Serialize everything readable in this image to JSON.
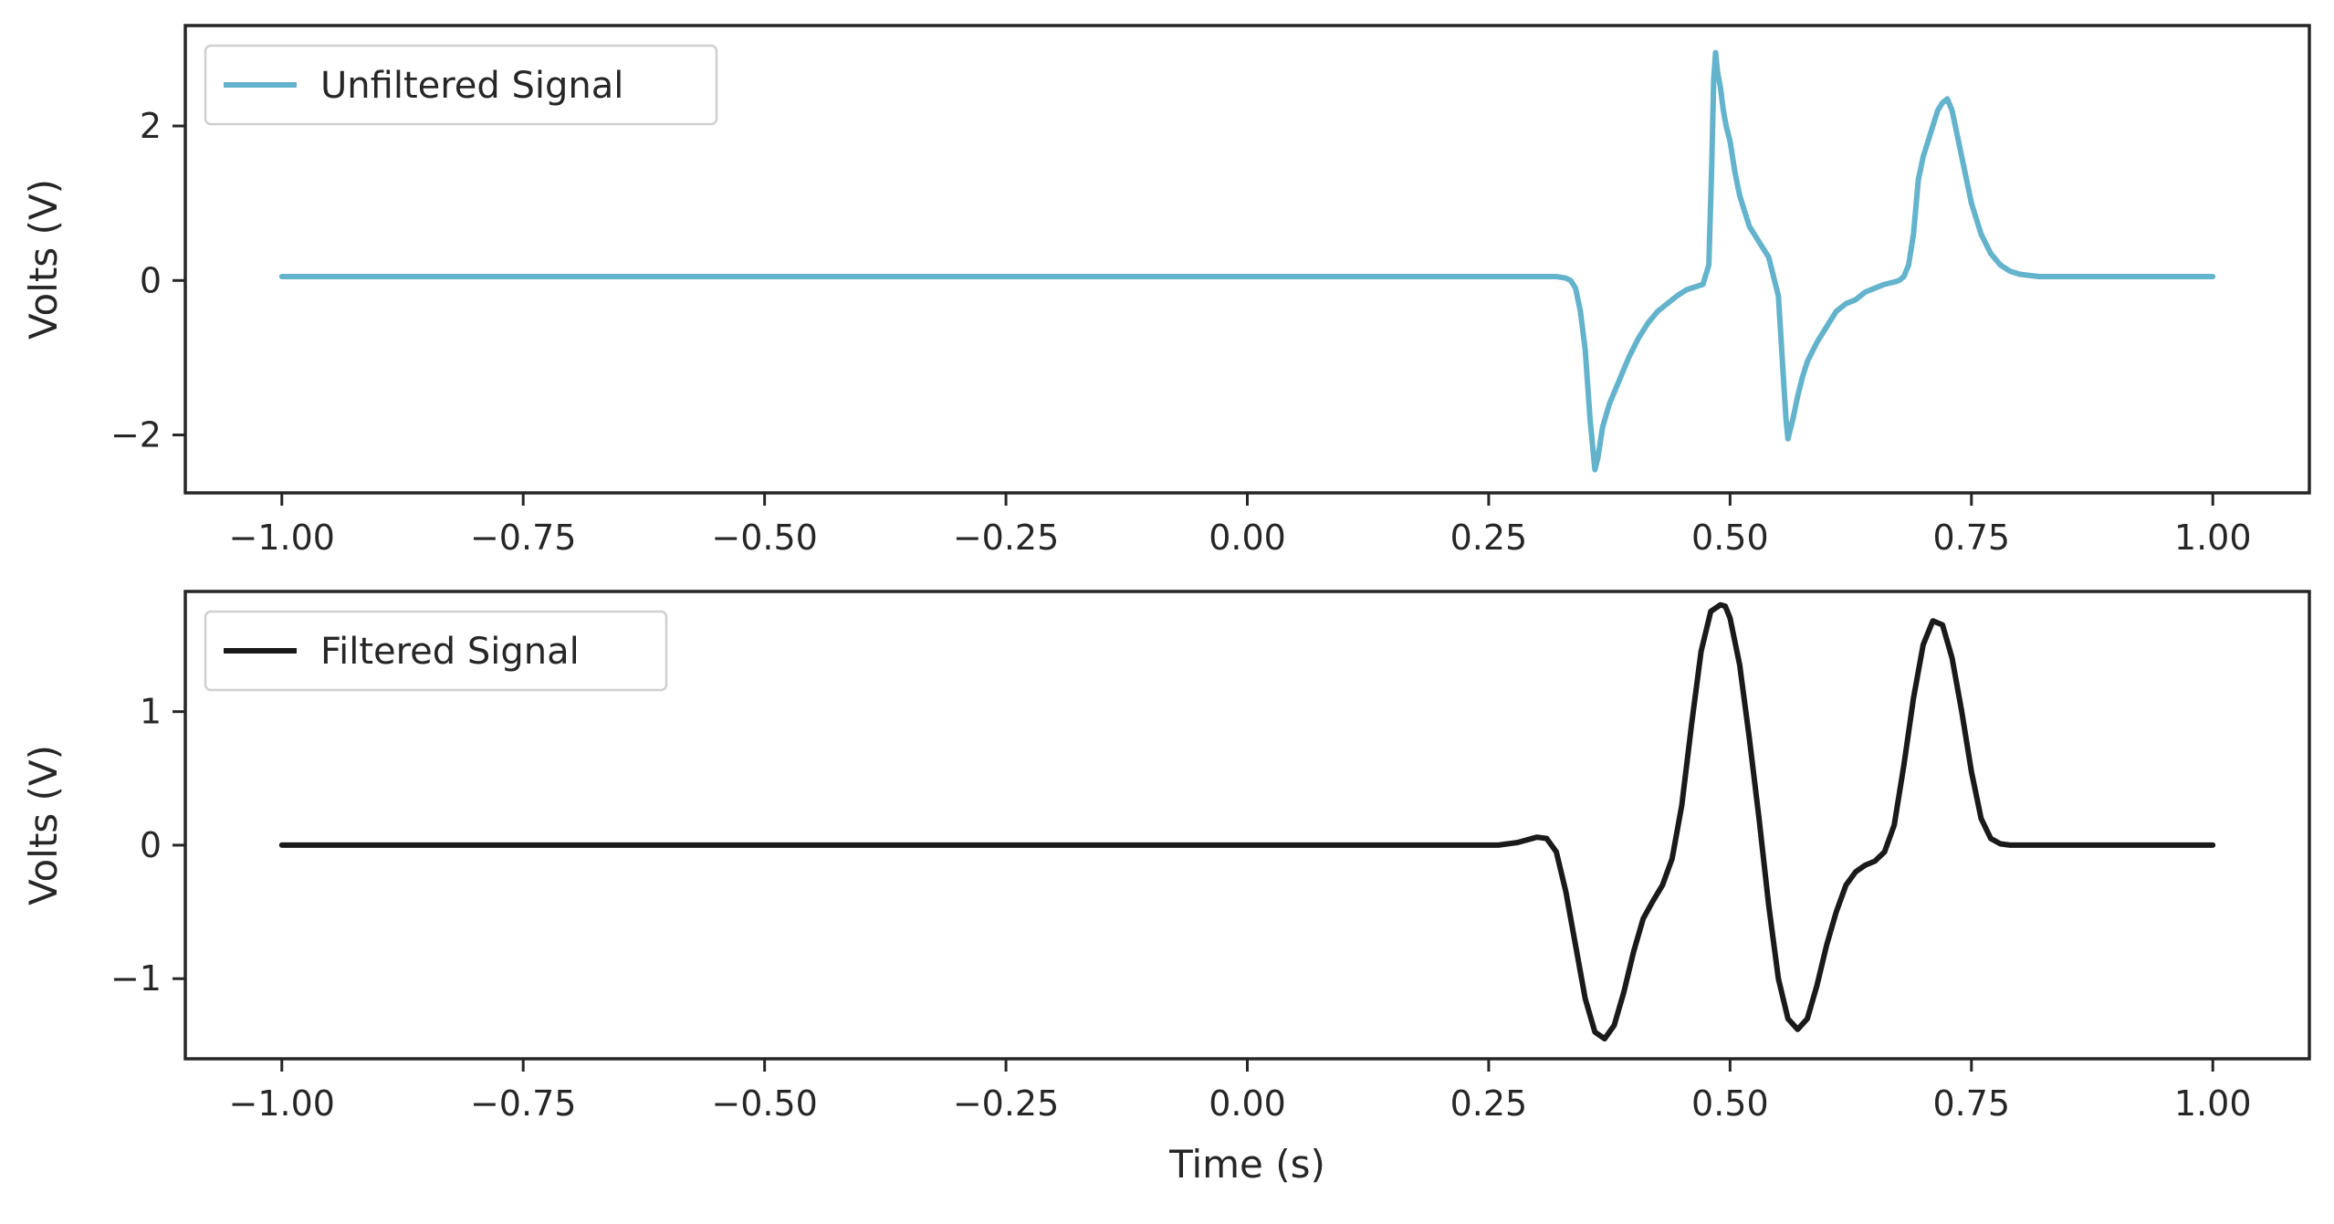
{
  "chart_data": [
    {
      "type": "line",
      "xlabel": "",
      "ylabel": "Volts (V)",
      "xlim": [
        -1.1,
        1.1
      ],
      "ylim": [
        -2.75,
        3.3
      ],
      "xticks": [
        -1.0,
        -0.75,
        -0.5,
        -0.25,
        0.0,
        0.25,
        0.5,
        0.75,
        1.0
      ],
      "xtick_labels": [
        "−1.00",
        "−0.75",
        "−0.50",
        "−0.25",
        "0.00",
        "0.25",
        "0.50",
        "0.75",
        "1.00"
      ],
      "yticks": [
        -2,
        0,
        2
      ],
      "ytick_labels": [
        "−2",
        "0",
        "2"
      ],
      "legend_position": "upper-left",
      "grid": false,
      "series": [
        {
          "name": "Unfiltered Signal",
          "color": "#63b3cc",
          "x": [
            -1.0,
            -0.9,
            -0.8,
            -0.7,
            -0.6,
            -0.5,
            -0.4,
            -0.3,
            -0.2,
            -0.1,
            0.0,
            0.1,
            0.2,
            0.3,
            0.31,
            0.32,
            0.33,
            0.335,
            0.34,
            0.345,
            0.35,
            0.355,
            0.36,
            0.363,
            0.368,
            0.375,
            0.385,
            0.395,
            0.405,
            0.415,
            0.425,
            0.435,
            0.445,
            0.455,
            0.465,
            0.472,
            0.478,
            0.481,
            0.483,
            0.485,
            0.487,
            0.49,
            0.493,
            0.496,
            0.5,
            0.505,
            0.51,
            0.515,
            0.52,
            0.53,
            0.54,
            0.55,
            0.555,
            0.558,
            0.56,
            0.562,
            0.565,
            0.57,
            0.575,
            0.58,
            0.59,
            0.6,
            0.61,
            0.62,
            0.63,
            0.64,
            0.65,
            0.66,
            0.67,
            0.675,
            0.68,
            0.685,
            0.69,
            0.695,
            0.7,
            0.705,
            0.71,
            0.715,
            0.72,
            0.725,
            0.73,
            0.735,
            0.74,
            0.745,
            0.75,
            0.76,
            0.77,
            0.78,
            0.79,
            0.8,
            0.82,
            0.85,
            0.9,
            0.95,
            1.0
          ],
          "y": [
            0.05,
            0.05,
            0.05,
            0.05,
            0.05,
            0.05,
            0.05,
            0.05,
            0.05,
            0.05,
            0.05,
            0.05,
            0.05,
            0.05,
            0.05,
            0.05,
            0.03,
            0.0,
            -0.1,
            -0.4,
            -0.9,
            -1.8,
            -2.45,
            -2.3,
            -1.9,
            -1.6,
            -1.3,
            -1.0,
            -0.75,
            -0.55,
            -0.4,
            -0.3,
            -0.2,
            -0.12,
            -0.08,
            -0.05,
            0.2,
            1.5,
            2.6,
            2.95,
            2.7,
            2.5,
            2.2,
            2.0,
            1.8,
            1.4,
            1.1,
            0.9,
            0.7,
            0.5,
            0.3,
            -0.2,
            -1.2,
            -1.8,
            -2.05,
            -1.95,
            -1.8,
            -1.5,
            -1.25,
            -1.05,
            -0.8,
            -0.6,
            -0.4,
            -0.3,
            -0.25,
            -0.15,
            -0.1,
            -0.05,
            -0.02,
            0.0,
            0.05,
            0.2,
            0.6,
            1.3,
            1.6,
            1.8,
            2.0,
            2.2,
            2.3,
            2.35,
            2.2,
            1.9,
            1.6,
            1.3,
            1.0,
            0.6,
            0.35,
            0.2,
            0.12,
            0.08,
            0.05,
            0.05,
            0.05,
            0.05,
            0.05
          ]
        }
      ]
    },
    {
      "type": "line",
      "xlabel": "Time (s)",
      "ylabel": "Volts (V)",
      "xlim": [
        -1.1,
        1.1
      ],
      "ylim": [
        -1.6,
        1.9
      ],
      "xticks": [
        -1.0,
        -0.75,
        -0.5,
        -0.25,
        0.0,
        0.25,
        0.5,
        0.75,
        1.0
      ],
      "xtick_labels": [
        "−1.00",
        "−0.75",
        "−0.50",
        "−0.25",
        "0.00",
        "0.25",
        "0.50",
        "0.75",
        "1.00"
      ],
      "yticks": [
        -1,
        0,
        1
      ],
      "ytick_labels": [
        "−1",
        "0",
        "1"
      ],
      "legend_position": "upper-left",
      "grid": false,
      "series": [
        {
          "name": "Filtered Signal",
          "color": "#1a1a1a",
          "x": [
            -1.0,
            -0.8,
            -0.6,
            -0.4,
            -0.2,
            0.0,
            0.2,
            0.26,
            0.28,
            0.3,
            0.31,
            0.32,
            0.33,
            0.34,
            0.35,
            0.36,
            0.37,
            0.38,
            0.39,
            0.4,
            0.41,
            0.42,
            0.43,
            0.44,
            0.45,
            0.46,
            0.47,
            0.48,
            0.49,
            0.495,
            0.5,
            0.51,
            0.52,
            0.53,
            0.54,
            0.55,
            0.56,
            0.57,
            0.58,
            0.59,
            0.6,
            0.61,
            0.62,
            0.63,
            0.64,
            0.65,
            0.66,
            0.67,
            0.68,
            0.69,
            0.7,
            0.71,
            0.72,
            0.73,
            0.74,
            0.75,
            0.76,
            0.77,
            0.78,
            0.79,
            0.8,
            0.85,
            0.9,
            1.0
          ],
          "y": [
            0.0,
            0.0,
            0.0,
            0.0,
            0.0,
            0.0,
            0.0,
            0.0,
            0.02,
            0.06,
            0.05,
            -0.05,
            -0.35,
            -0.75,
            -1.15,
            -1.4,
            -1.45,
            -1.35,
            -1.1,
            -0.8,
            -0.55,
            -0.42,
            -0.3,
            -0.1,
            0.3,
            0.9,
            1.45,
            1.75,
            1.8,
            1.79,
            1.7,
            1.35,
            0.8,
            0.2,
            -0.45,
            -1.0,
            -1.3,
            -1.38,
            -1.3,
            -1.05,
            -0.75,
            -0.5,
            -0.3,
            -0.2,
            -0.15,
            -0.12,
            -0.05,
            0.15,
            0.6,
            1.1,
            1.5,
            1.68,
            1.65,
            1.4,
            1.0,
            0.55,
            0.2,
            0.05,
            0.01,
            0.0,
            0.0,
            0.0,
            0.0,
            0.0
          ]
        }
      ]
    }
  ]
}
